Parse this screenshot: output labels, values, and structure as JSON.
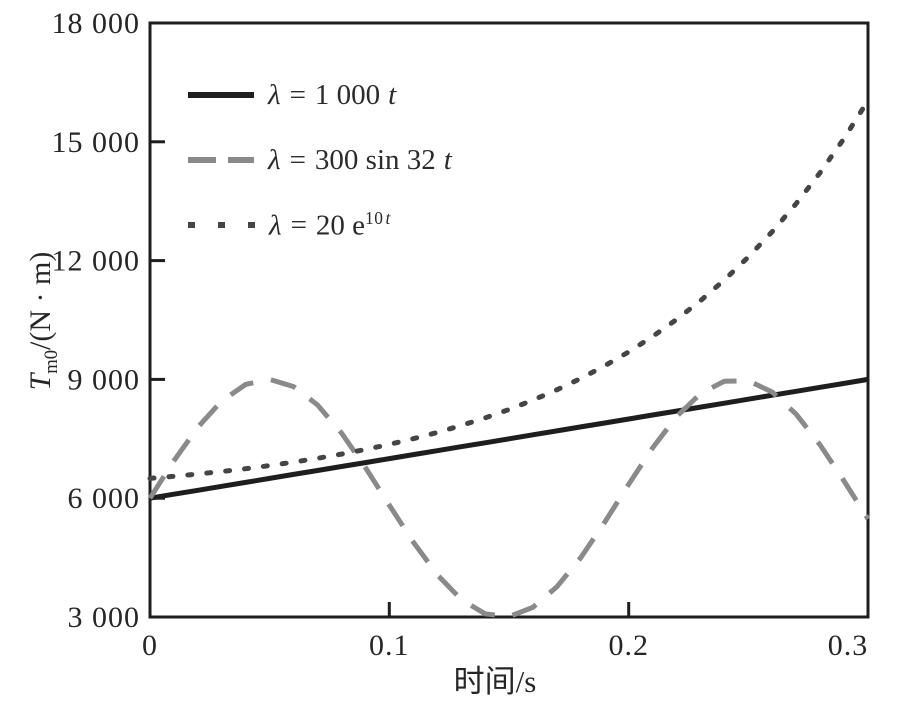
{
  "chart_data": {
    "type": "line",
    "title": "",
    "xlabel": "时间/s",
    "ylabel": "T_m0/(N · m)",
    "xlim": [
      0,
      0.3
    ],
    "ylim": [
      3000,
      18000
    ],
    "grid": false,
    "legend_position": "upper-left-inside",
    "axis_color": "#1e1e1e",
    "xticks": {
      "values": [
        0,
        0.1,
        0.2,
        0.3
      ],
      "labels": [
        "0",
        "0.1",
        "0.2",
        "0.3"
      ]
    },
    "yticks": {
      "values": [
        3000,
        6000,
        9000,
        12000,
        15000,
        18000
      ],
      "labels": [
        "3 000",
        "6 000",
        "9 000",
        "12 000",
        "15 000",
        "18 000"
      ]
    },
    "x": [
      0,
      0.01,
      0.02,
      0.03,
      0.04,
      0.05,
      0.06,
      0.07,
      0.08,
      0.09,
      0.1,
      0.11,
      0.12,
      0.13,
      0.14,
      0.15,
      0.16,
      0.17,
      0.18,
      0.19,
      0.2,
      0.21,
      0.22,
      0.23,
      0.24,
      0.25,
      0.26,
      0.27,
      0.28,
      0.29,
      0.3
    ],
    "series": [
      {
        "name": "λ = 1 000 t",
        "style": "solid",
        "color": "#1e1e1e",
        "width": 5,
        "dasharray": "",
        "linecap": "butt",
        "values": [
          6000,
          6100,
          6200,
          6300,
          6400,
          6500,
          6600,
          6700,
          6800,
          6900,
          7000,
          7100,
          7200,
          7300,
          7400,
          7500,
          7600,
          7700,
          7800,
          7900,
          8000,
          8100,
          8200,
          8300,
          8400,
          8500,
          8600,
          8700,
          8800,
          8900,
          9000
        ]
      },
      {
        "name": "λ = 300 sin 32 t",
        "style": "dashed",
        "color": "#8a8a8a",
        "width": 5,
        "dasharray": "26 18",
        "linecap": "butt",
        "values": [
          6000,
          6944,
          7792,
          8458,
          8874,
          8999,
          8818,
          8355,
          7646,
          6774,
          5825,
          4892,
          4071,
          3445,
          3081,
          3011,
          3245,
          3763,
          4501,
          5395,
          6350,
          7269,
          8060,
          8641,
          8955,
          8968,
          8680,
          8120,
          7345,
          6433,
          5477
        ]
      },
      {
        "name": "λ = 20 e^(10 t)",
        "style": "dotted",
        "color": "#454545",
        "width": 5,
        "dasharray": "4 15",
        "linecap": "round",
        "values": [
          6500,
          6553,
          6611,
          6675,
          6746,
          6824,
          6911,
          7007,
          7113,
          7230,
          7359,
          7502,
          7660,
          7835,
          8028,
          8241,
          8477,
          8737,
          9025,
          9343,
          9695,
          10083,
          10513,
          10987,
          11512,
          12091,
          12732,
          13440,
          14222,
          15087,
          16043
        ]
      }
    ]
  },
  "axes": {
    "x_label": "时间/s",
    "y_label_var": "T",
    "y_label_sub": "m0",
    "y_label_rest": "/(N · m)"
  },
  "legend": {
    "items": [
      {
        "sym": "λ",
        "eq": "=",
        "expr": "1 000",
        "var": "t"
      },
      {
        "sym": "λ",
        "eq": "=",
        "expr": "300 sin 32",
        "var": "t"
      },
      {
        "sym": "λ",
        "eq": "=",
        "expr": "20 e",
        "sup_num": "10",
        "sup_var": "t"
      }
    ]
  }
}
